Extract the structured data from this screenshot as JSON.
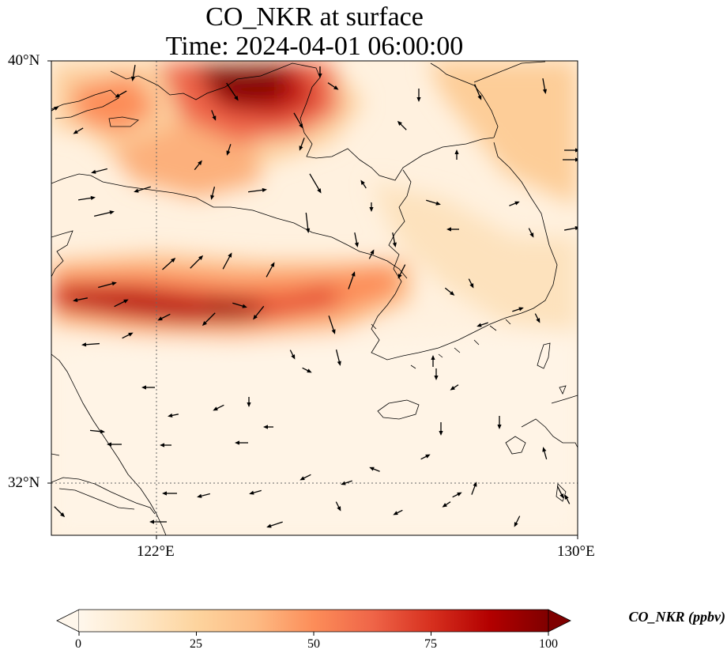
{
  "title": {
    "line1": "CO_NKR at surface",
    "line2": "Time: 2024-04-01 06:00:00"
  },
  "axes": {
    "lat_labels": [
      "40°N",
      "32°N"
    ],
    "lon_labels": [
      "122°E",
      "130°E"
    ],
    "lon_range": [
      120,
      130
    ],
    "lat_range": [
      31,
      40
    ]
  },
  "colorbar": {
    "label": "CO_NKR (ppbv)",
    "ticks": [
      "0",
      "25",
      "50",
      "75",
      "100"
    ],
    "min": 0,
    "max": 100,
    "colormap": "OrRd",
    "stops": [
      "#fff7ec",
      "#fee8c8",
      "#fdd49e",
      "#fdbb84",
      "#fc8d59",
      "#ef6548",
      "#d7301f",
      "#b30000",
      "#7f0000"
    ]
  },
  "chart_data": {
    "type": "heatmap",
    "variable": "CO_NKR",
    "units": "ppbv",
    "plume_features": [
      {
        "feature": "northern plume (Bohai / Liaodong)",
        "peak_ppbv": 100
      },
      {
        "feature": "central band across Yellow Sea (~34.6°N)",
        "peak_ppbv": 90
      },
      {
        "feature": "northeast background",
        "peak_ppbv": 25
      },
      {
        "feature": "southern background",
        "peak_ppbv": 5
      }
    ],
    "wind_vectors": "surface wind arrows, predominantly westward/southwestward"
  }
}
